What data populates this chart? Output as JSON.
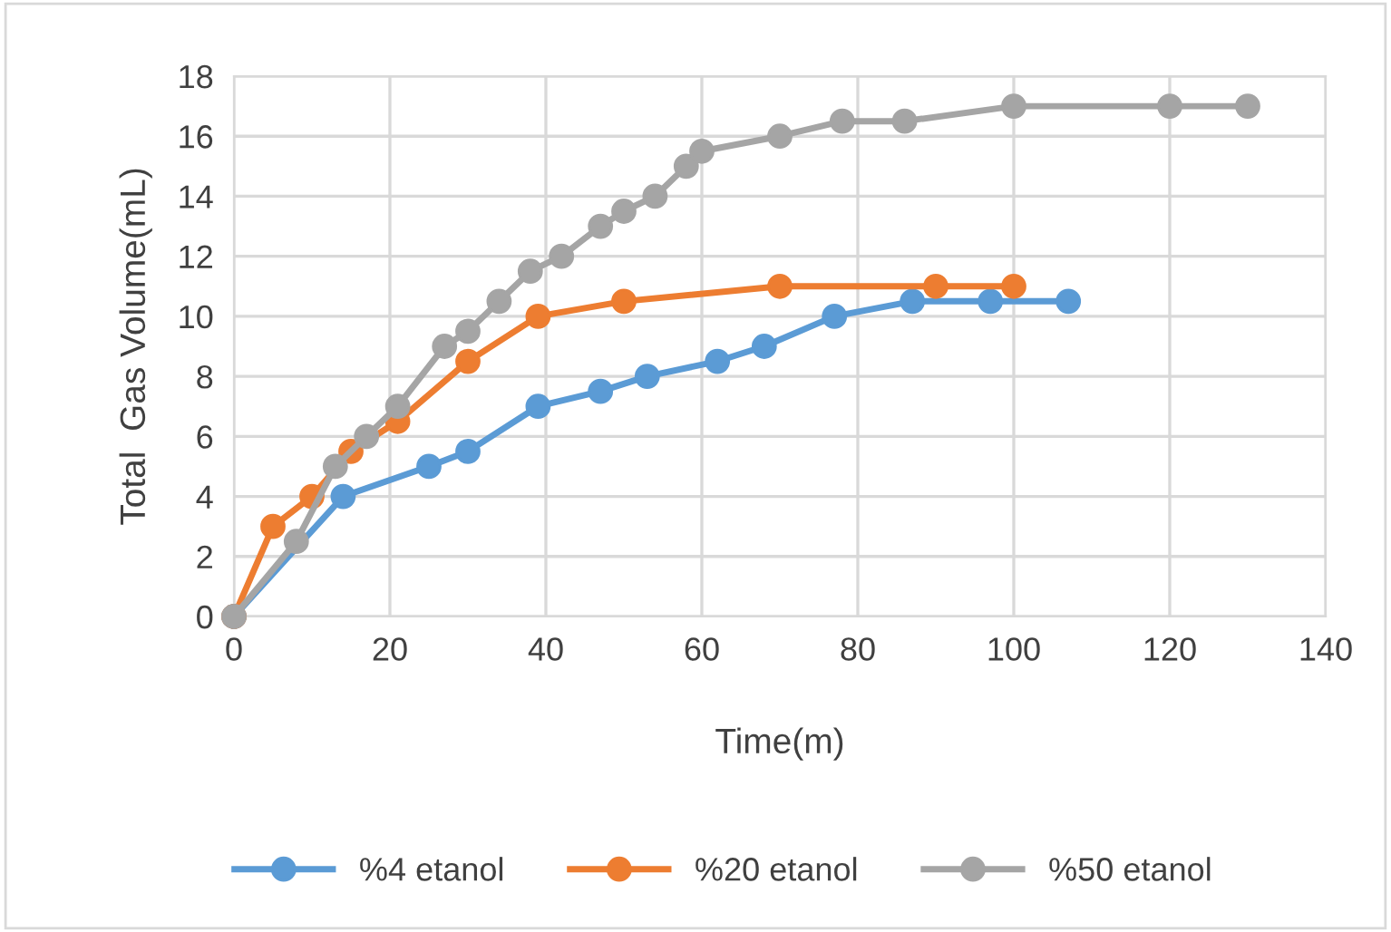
{
  "chart_data": {
    "type": "line",
    "xlabel": "Time(m)",
    "ylabel": "Total  Gas Volume(mL)",
    "xlim": [
      0,
      140
    ],
    "xticks": [
      0,
      20,
      40,
      60,
      80,
      100,
      120,
      140
    ],
    "ylim": [
      0,
      18
    ],
    "yticks": [
      0,
      2,
      4,
      6,
      8,
      10,
      12,
      14,
      16,
      18
    ],
    "grid": true,
    "legend": "bottom",
    "marker": "circle",
    "line_style": "solid",
    "series": [
      {
        "name": "%4 etanol",
        "color": "#5b9bd5",
        "x": [
          0,
          14,
          25,
          30,
          39,
          47,
          53,
          62,
          68,
          77,
          87,
          97,
          107
        ],
        "values": [
          0,
          4,
          5,
          5.5,
          7,
          7.5,
          8,
          8.5,
          9,
          10,
          10.5,
          10.5,
          10.5
        ]
      },
      {
        "name": "%20 etanol",
        "color": "#ed7d31",
        "x": [
          0,
          5,
          10,
          15,
          21,
          30,
          39,
          50,
          70,
          90,
          100
        ],
        "values": [
          0,
          3,
          4,
          5.5,
          6.5,
          8.5,
          10,
          10.5,
          11,
          11,
          11
        ]
      },
      {
        "name": "%50 etanol",
        "color": "#a5a5a5",
        "x": [
          0,
          8,
          13,
          17,
          21,
          27,
          30,
          34,
          38,
          42,
          47,
          50,
          54,
          58,
          60,
          70,
          78,
          86,
          100,
          120,
          130
        ],
        "values": [
          0,
          2.5,
          5,
          6,
          7,
          9,
          9.5,
          10.5,
          11.5,
          12,
          13,
          13.5,
          14,
          15,
          15.5,
          16,
          16.5,
          16.5,
          17,
          17,
          17
        ]
      }
    ]
  }
}
